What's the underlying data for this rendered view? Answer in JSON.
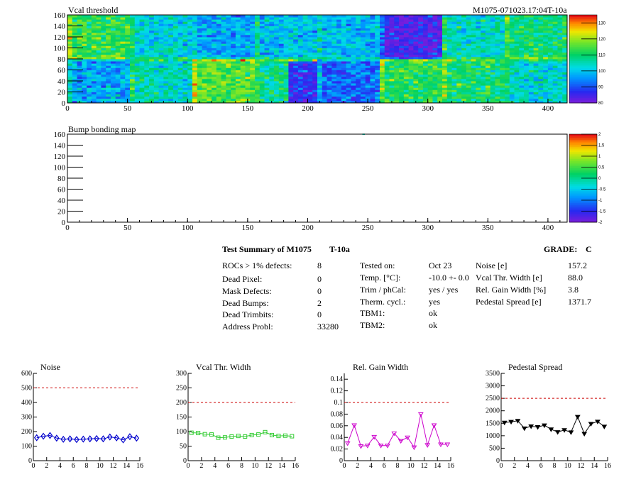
{
  "header": {
    "run_id": "M1075-071023.17:04T-10a"
  },
  "summary": {
    "title": "Test Summary of M1075",
    "temp_label": "T-10a",
    "grade_label": "GRADE:",
    "grade_value": "C",
    "col1": [
      {
        "label": "ROCs > 1% defects:",
        "value": "8"
      },
      {
        "label": "Dead Pixel:",
        "value": "0"
      },
      {
        "label": "Mask Defects:",
        "value": "0"
      },
      {
        "label": "Dead Bumps:",
        "value": "2"
      },
      {
        "label": "Dead Trimbits:",
        "value": "0"
      },
      {
        "label": "Address Probl:",
        "value": "33280"
      }
    ],
    "col2": [
      {
        "label": "Tested on:",
        "value": "Oct 23"
      },
      {
        "label": "Temp. [°C]:",
        "value": "-10.0 +- 0.0"
      },
      {
        "label": "Trim / phCal:",
        "value": "yes / yes"
      },
      {
        "label": "Therm. cycl.:",
        "value": "yes"
      },
      {
        "label": "TBM1:",
        "value": "ok"
      },
      {
        "label": "TBM2:",
        "value": "ok"
      }
    ],
    "col3": [
      {
        "label": "Noise [e]",
        "value": "157.2"
      },
      {
        "label": "Vcal Thr. Width [e]",
        "value": "88.0"
      },
      {
        "label": "Rel. Gain Width [%]",
        "value": "3.8"
      },
      {
        "label": "Pedestal Spread [e]",
        "value": "1371.7"
      }
    ]
  },
  "chart_data": [
    {
      "type": "heatmap",
      "title": "Vcal threshold",
      "xlim": [
        0,
        416
      ],
      "ylim": [
        0,
        160
      ],
      "xticks": [
        0,
        50,
        100,
        150,
        200,
        250,
        300,
        350,
        400
      ],
      "yticks": [
        0,
        20,
        40,
        60,
        80,
        100,
        120,
        140,
        160
      ],
      "zlim": [
        80,
        135
      ],
      "zticks": [
        80,
        90,
        100,
        110,
        120,
        130
      ],
      "roc_mean_threshold": {
        "top_row": [
          113,
          102,
          97,
          100,
          99,
          84,
          104,
          110
        ],
        "bottom_row": [
          97,
          104,
          116,
          108,
          92,
          112,
          110,
          103
        ]
      },
      "roc_size": {
        "cols": 52,
        "rows": 80
      },
      "low_region": {
        "x": [
          182,
          206
        ],
        "y": [
          0,
          75
        ],
        "value": 86
      }
    },
    {
      "type": "heatmap",
      "title": "Bump bonding map",
      "xlim": [
        0,
        416
      ],
      "ylim": [
        0,
        160
      ],
      "xticks": [
        0,
        50,
        100,
        150,
        200,
        250,
        300,
        350,
        400
      ],
      "yticks": [
        0,
        20,
        40,
        60,
        80,
        100,
        120,
        140,
        160
      ],
      "zlim": [
        -2,
        2
      ],
      "zticks": [
        -2,
        -1.5,
        -1,
        -0.5,
        0,
        0.5,
        1,
        1.5,
        2
      ],
      "dead_bumps": [
        {
          "x": 246,
          "y": 159
        },
        {
          "x": 247,
          "y": 159
        }
      ]
    },
    {
      "type": "line",
      "title": "Noise",
      "x": [
        0,
        1,
        2,
        3,
        4,
        5,
        6,
        7,
        8,
        9,
        10,
        11,
        12,
        13,
        14,
        15
      ],
      "values": [
        158,
        168,
        173,
        155,
        147,
        150,
        145,
        148,
        150,
        152,
        150,
        163,
        157,
        143,
        165,
        155
      ],
      "xlim": [
        0,
        16
      ],
      "ylim": [
        0,
        600
      ],
      "yticks": [
        0,
        100,
        200,
        300,
        400,
        500,
        600
      ],
      "xticks": [
        0,
        2,
        4,
        6,
        8,
        10,
        12,
        14,
        16
      ],
      "limit": 500,
      "color": "#0000cc",
      "marker": "diamond"
    },
    {
      "type": "line",
      "title": "Vcal Thr. Width",
      "x": [
        0,
        1,
        2,
        3,
        4,
        5,
        6,
        7,
        8,
        9,
        10,
        11,
        12,
        13,
        14,
        15
      ],
      "values": [
        96,
        95,
        91,
        90,
        79,
        80,
        83,
        85,
        83,
        88,
        90,
        98,
        88,
        85,
        86,
        84
      ],
      "xlim": [
        0,
        16
      ],
      "ylim": [
        0,
        300
      ],
      "yticks": [
        0,
        50,
        100,
        150,
        200,
        250,
        300
      ],
      "xticks": [
        0,
        2,
        4,
        6,
        8,
        10,
        12,
        14,
        16
      ],
      "limit": 200,
      "color": "#33cc33",
      "marker": "square"
    },
    {
      "type": "line",
      "title": "Rel. Gain Width",
      "x": [
        0,
        1,
        2,
        3,
        4,
        5,
        6,
        7,
        8,
        9,
        10,
        11,
        12,
        13,
        14,
        15
      ],
      "values": [
        0.03,
        0.061,
        0.025,
        0.026,
        0.041,
        0.026,
        0.026,
        0.047,
        0.034,
        0.04,
        0.023,
        0.08,
        0.027,
        0.061,
        0.028,
        0.028
      ],
      "xlim": [
        0,
        16
      ],
      "ylim": [
        0,
        0.15
      ],
      "yticks": [
        0,
        0.02,
        0.04,
        0.06,
        0.08,
        0.1,
        0.12,
        0.14
      ],
      "xticks": [
        0,
        2,
        4,
        6,
        8,
        10,
        12,
        14,
        16
      ],
      "limit": 0.1,
      "color": "#cc00cc",
      "marker": "triangle"
    },
    {
      "type": "line",
      "title": "Pedestal Spread",
      "x": [
        0,
        1,
        2,
        3,
        4,
        5,
        6,
        7,
        8,
        9,
        10,
        11,
        12,
        13,
        14,
        15
      ],
      "values": [
        1530,
        1560,
        1600,
        1300,
        1380,
        1350,
        1420,
        1260,
        1150,
        1230,
        1140,
        1760,
        1080,
        1480,
        1570,
        1370
      ],
      "xlim": [
        0,
        16
      ],
      "ylim": [
        0,
        3500
      ],
      "yticks": [
        0,
        500,
        1000,
        1500,
        2000,
        2500,
        3000,
        3500
      ],
      "xticks": [
        0,
        2,
        4,
        6,
        8,
        10,
        12,
        14,
        16
      ],
      "limit": 2500,
      "color": "#000000",
      "marker": "triangle-down"
    }
  ]
}
